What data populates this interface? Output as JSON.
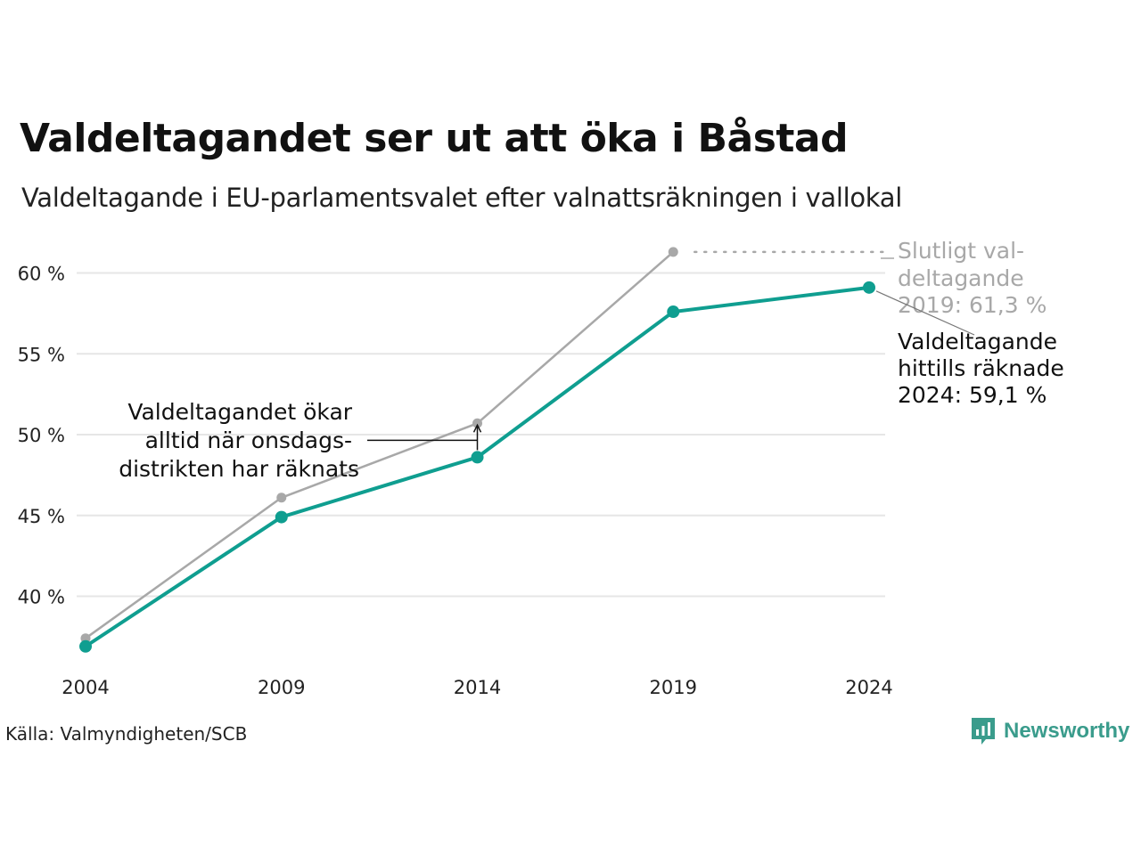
{
  "title": "Valdeltagandet ser ut att öka i Båstad",
  "subtitle": "Valdeltagande i EU-parlamentsvalet efter valnattsräkningen i vallokal",
  "source": "Källa: Valmyndigheten/SCB",
  "brand": {
    "name": "Newsworthy",
    "icon": "newsworthy-logo-icon",
    "color": "#3a9c8c"
  },
  "chart_data": {
    "type": "line",
    "x": [
      "2004",
      "2009",
      "2014",
      "2019",
      "2024"
    ],
    "ylim": [
      35,
      62
    ],
    "yticks": [
      40,
      45,
      50,
      55,
      60
    ],
    "ytick_labels": [
      "40 %",
      "45 %",
      "50 %",
      "55 %",
      "60 %"
    ],
    "grid": true,
    "series": [
      {
        "role": "final",
        "color": "#a8a8a8",
        "values": [
          37.4,
          46.1,
          50.7,
          61.3,
          null
        ]
      },
      {
        "role": "preliminary",
        "color": "#0f9e90",
        "values": [
          36.9,
          44.9,
          48.6,
          57.6,
          59.1
        ]
      }
    ],
    "annotations": {
      "final_2019": [
        "Slutligt val-",
        "deltagande",
        "2019: 61,3 %"
      ],
      "counted_2024": [
        "Valdeltagande",
        "hittills räknade",
        "2024: 59,1 %"
      ],
      "wednesday": [
        "Valdeltagandet ökar",
        "alltid när onsdags-",
        "distrikten har räknats"
      ]
    }
  }
}
